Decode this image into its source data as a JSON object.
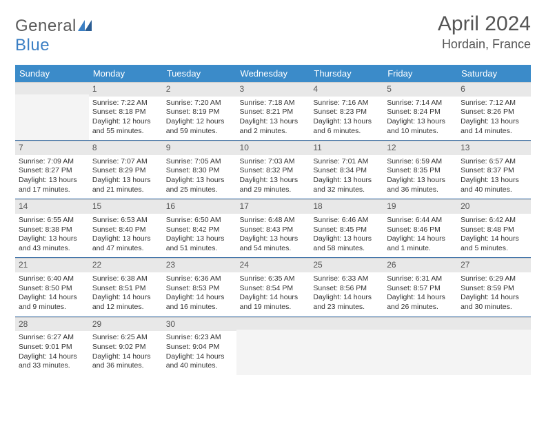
{
  "logo": {
    "text1": "General",
    "text2": "Blue"
  },
  "title": "April 2024",
  "location": "Hordain, France",
  "day_headers": [
    "Sunday",
    "Monday",
    "Tuesday",
    "Wednesday",
    "Thursday",
    "Friday",
    "Saturday"
  ],
  "colors": {
    "header_bg": "#3b8bc9",
    "header_text": "#ffffff",
    "daynum_bg": "#e8e8e8",
    "row_border": "#3b6fa5",
    "text": "#333333",
    "title_text": "#555555",
    "logo_gray": "#5a5a5a",
    "logo_blue": "#3b7fc4"
  },
  "weeks": [
    [
      {
        "n": "",
        "sunrise": "",
        "sunset": "",
        "daylight": ""
      },
      {
        "n": "1",
        "sunrise": "Sunrise: 7:22 AM",
        "sunset": "Sunset: 8:18 PM",
        "daylight": "Daylight: 12 hours and 55 minutes."
      },
      {
        "n": "2",
        "sunrise": "Sunrise: 7:20 AM",
        "sunset": "Sunset: 8:19 PM",
        "daylight": "Daylight: 12 hours and 59 minutes."
      },
      {
        "n": "3",
        "sunrise": "Sunrise: 7:18 AM",
        "sunset": "Sunset: 8:21 PM",
        "daylight": "Daylight: 13 hours and 2 minutes."
      },
      {
        "n": "4",
        "sunrise": "Sunrise: 7:16 AM",
        "sunset": "Sunset: 8:23 PM",
        "daylight": "Daylight: 13 hours and 6 minutes."
      },
      {
        "n": "5",
        "sunrise": "Sunrise: 7:14 AM",
        "sunset": "Sunset: 8:24 PM",
        "daylight": "Daylight: 13 hours and 10 minutes."
      },
      {
        "n": "6",
        "sunrise": "Sunrise: 7:12 AM",
        "sunset": "Sunset: 8:26 PM",
        "daylight": "Daylight: 13 hours and 14 minutes."
      }
    ],
    [
      {
        "n": "7",
        "sunrise": "Sunrise: 7:09 AM",
        "sunset": "Sunset: 8:27 PM",
        "daylight": "Daylight: 13 hours and 17 minutes."
      },
      {
        "n": "8",
        "sunrise": "Sunrise: 7:07 AM",
        "sunset": "Sunset: 8:29 PM",
        "daylight": "Daylight: 13 hours and 21 minutes."
      },
      {
        "n": "9",
        "sunrise": "Sunrise: 7:05 AM",
        "sunset": "Sunset: 8:30 PM",
        "daylight": "Daylight: 13 hours and 25 minutes."
      },
      {
        "n": "10",
        "sunrise": "Sunrise: 7:03 AM",
        "sunset": "Sunset: 8:32 PM",
        "daylight": "Daylight: 13 hours and 29 minutes."
      },
      {
        "n": "11",
        "sunrise": "Sunrise: 7:01 AM",
        "sunset": "Sunset: 8:34 PM",
        "daylight": "Daylight: 13 hours and 32 minutes."
      },
      {
        "n": "12",
        "sunrise": "Sunrise: 6:59 AM",
        "sunset": "Sunset: 8:35 PM",
        "daylight": "Daylight: 13 hours and 36 minutes."
      },
      {
        "n": "13",
        "sunrise": "Sunrise: 6:57 AM",
        "sunset": "Sunset: 8:37 PM",
        "daylight": "Daylight: 13 hours and 40 minutes."
      }
    ],
    [
      {
        "n": "14",
        "sunrise": "Sunrise: 6:55 AM",
        "sunset": "Sunset: 8:38 PM",
        "daylight": "Daylight: 13 hours and 43 minutes."
      },
      {
        "n": "15",
        "sunrise": "Sunrise: 6:53 AM",
        "sunset": "Sunset: 8:40 PM",
        "daylight": "Daylight: 13 hours and 47 minutes."
      },
      {
        "n": "16",
        "sunrise": "Sunrise: 6:50 AM",
        "sunset": "Sunset: 8:42 PM",
        "daylight": "Daylight: 13 hours and 51 minutes."
      },
      {
        "n": "17",
        "sunrise": "Sunrise: 6:48 AM",
        "sunset": "Sunset: 8:43 PM",
        "daylight": "Daylight: 13 hours and 54 minutes."
      },
      {
        "n": "18",
        "sunrise": "Sunrise: 6:46 AM",
        "sunset": "Sunset: 8:45 PM",
        "daylight": "Daylight: 13 hours and 58 minutes."
      },
      {
        "n": "19",
        "sunrise": "Sunrise: 6:44 AM",
        "sunset": "Sunset: 8:46 PM",
        "daylight": "Daylight: 14 hours and 1 minute."
      },
      {
        "n": "20",
        "sunrise": "Sunrise: 6:42 AM",
        "sunset": "Sunset: 8:48 PM",
        "daylight": "Daylight: 14 hours and 5 minutes."
      }
    ],
    [
      {
        "n": "21",
        "sunrise": "Sunrise: 6:40 AM",
        "sunset": "Sunset: 8:50 PM",
        "daylight": "Daylight: 14 hours and 9 minutes."
      },
      {
        "n": "22",
        "sunrise": "Sunrise: 6:38 AM",
        "sunset": "Sunset: 8:51 PM",
        "daylight": "Daylight: 14 hours and 12 minutes."
      },
      {
        "n": "23",
        "sunrise": "Sunrise: 6:36 AM",
        "sunset": "Sunset: 8:53 PM",
        "daylight": "Daylight: 14 hours and 16 minutes."
      },
      {
        "n": "24",
        "sunrise": "Sunrise: 6:35 AM",
        "sunset": "Sunset: 8:54 PM",
        "daylight": "Daylight: 14 hours and 19 minutes."
      },
      {
        "n": "25",
        "sunrise": "Sunrise: 6:33 AM",
        "sunset": "Sunset: 8:56 PM",
        "daylight": "Daylight: 14 hours and 23 minutes."
      },
      {
        "n": "26",
        "sunrise": "Sunrise: 6:31 AM",
        "sunset": "Sunset: 8:57 PM",
        "daylight": "Daylight: 14 hours and 26 minutes."
      },
      {
        "n": "27",
        "sunrise": "Sunrise: 6:29 AM",
        "sunset": "Sunset: 8:59 PM",
        "daylight": "Daylight: 14 hours and 30 minutes."
      }
    ],
    [
      {
        "n": "28",
        "sunrise": "Sunrise: 6:27 AM",
        "sunset": "Sunset: 9:01 PM",
        "daylight": "Daylight: 14 hours and 33 minutes."
      },
      {
        "n": "29",
        "sunrise": "Sunrise: 6:25 AM",
        "sunset": "Sunset: 9:02 PM",
        "daylight": "Daylight: 14 hours and 36 minutes."
      },
      {
        "n": "30",
        "sunrise": "Sunrise: 6:23 AM",
        "sunset": "Sunset: 9:04 PM",
        "daylight": "Daylight: 14 hours and 40 minutes."
      },
      {
        "n": "",
        "sunrise": "",
        "sunset": "",
        "daylight": ""
      },
      {
        "n": "",
        "sunrise": "",
        "sunset": "",
        "daylight": ""
      },
      {
        "n": "",
        "sunrise": "",
        "sunset": "",
        "daylight": ""
      },
      {
        "n": "",
        "sunrise": "",
        "sunset": "",
        "daylight": ""
      }
    ]
  ]
}
